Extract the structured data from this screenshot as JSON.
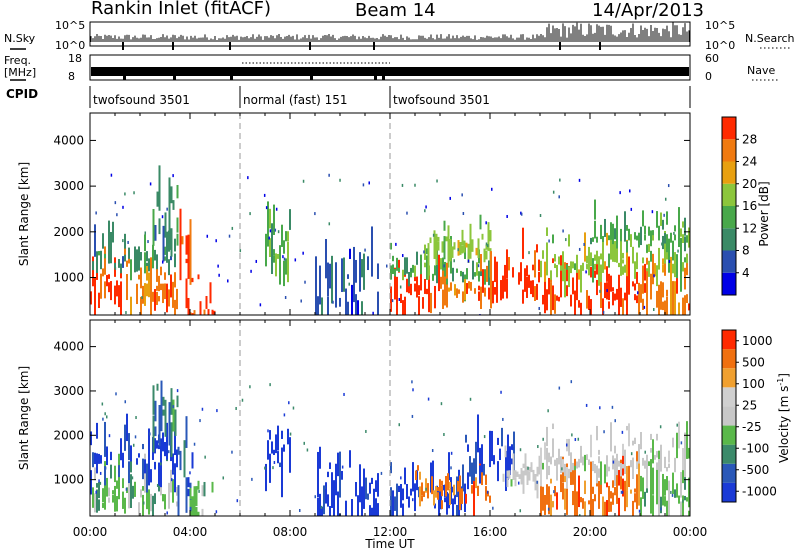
{
  "header": {
    "title_left": "Rankin Inlet (fitACF)",
    "title_center": "Beam 14",
    "title_right": "14/Apr/2013"
  },
  "status_panel": {
    "left_label": "N.Sky",
    "left_ticks": [
      "10^5",
      "10^0"
    ],
    "right_label": "N.Search",
    "right_ticks": [
      "10^5",
      "10^0"
    ]
  },
  "freq_panel": {
    "left_label_line1": "Freq.",
    "left_label_line2": "[MHz]",
    "left_ticks": [
      "18",
      "8"
    ],
    "right_label": "Nave",
    "right_ticks": [
      "60",
      "0"
    ]
  },
  "cpid_panel": {
    "label": "CPID",
    "segments": [
      {
        "name": "twofsound 3501",
        "start_h": 0,
        "end_h": 6
      },
      {
        "name": "normal (fast) 151",
        "start_h": 6,
        "end_h": 12
      },
      {
        "name": "twofsound 3501",
        "start_h": 12,
        "end_h": 24
      }
    ]
  },
  "x_axis": {
    "label": "Time UT",
    "ticks": [
      "00:00",
      "04:00",
      "08:00",
      "12:00",
      "16:00",
      "20:00",
      "00:00"
    ]
  },
  "chart_data": [
    {
      "type": "heatmap",
      "panel": "power",
      "ylabel": "Slant Range [km]",
      "ylim": [
        180,
        4600
      ],
      "yticks": [
        "1000",
        "2000",
        "3000",
        "4000"
      ],
      "xlim_hours": [
        0,
        24
      ],
      "colorbar_label": "Power [dB]",
      "colorbar_ticks": [
        "4",
        "8",
        "12",
        "16",
        "20",
        "24",
        "28"
      ],
      "colors": [
        "#0000e6",
        "#2a4fb0",
        "#3a8a66",
        "#48a84a",
        "#8cc63c",
        "#e8a010",
        "#f07a10",
        "#ff2a00"
      ],
      "regions": [
        {
          "t0": 0.0,
          "t1": 1.2,
          "r0": 500,
          "r1": 1350,
          "level": 7
        },
        {
          "t0": 0.0,
          "t1": 3.5,
          "r0": 1300,
          "r1": 2000,
          "level": 2
        },
        {
          "t0": 1.2,
          "t1": 3.5,
          "r0": 500,
          "r1": 1300,
          "level": 6
        },
        {
          "t0": 2.5,
          "t1": 3.5,
          "r0": 2000,
          "r1": 3200,
          "level": 2
        },
        {
          "t0": 3.5,
          "t1": 4.1,
          "r0": 800,
          "r1": 2400,
          "level": 7
        },
        {
          "t0": 3.9,
          "t1": 5.0,
          "r0": 180,
          "r1": 700,
          "level": 7
        },
        {
          "t0": 7.0,
          "t1": 8.0,
          "r0": 1300,
          "r1": 2500,
          "level": 3
        },
        {
          "t0": 9.0,
          "t1": 11.5,
          "r0": 300,
          "r1": 1800,
          "level": 1
        },
        {
          "t0": 12.0,
          "t1": 14.0,
          "r0": 500,
          "r1": 1100,
          "level": 7
        },
        {
          "t0": 12.0,
          "t1": 16.0,
          "r0": 1100,
          "r1": 1600,
          "level": 3
        },
        {
          "t0": 13.5,
          "t1": 16.0,
          "r0": 1600,
          "r1": 2200,
          "level": 4
        },
        {
          "t0": 14.0,
          "t1": 16.0,
          "r0": 700,
          "r1": 1100,
          "level": 6
        },
        {
          "t0": 16.0,
          "t1": 18.0,
          "r0": 700,
          "r1": 1700,
          "level": 7
        },
        {
          "t0": 18.0,
          "t1": 22.0,
          "r0": 500,
          "r1": 1200,
          "level": 7
        },
        {
          "t0": 18.0,
          "t1": 24.0,
          "r0": 1200,
          "r1": 1800,
          "level": 4
        },
        {
          "t0": 20.0,
          "t1": 24.0,
          "r0": 1800,
          "r1": 2300,
          "level": 3
        },
        {
          "t0": 22.0,
          "t1": 24.0,
          "r0": 400,
          "r1": 1200,
          "level": 6
        }
      ]
    },
    {
      "type": "heatmap",
      "panel": "velocity",
      "ylabel": "Slant Range [km]",
      "ylim": [
        180,
        4600
      ],
      "yticks": [
        "1000",
        "2000",
        "3000",
        "4000"
      ],
      "xlim_hours": [
        0,
        24
      ],
      "colorbar_label": "Velocity [m s-1]",
      "colorbar_label_parts": [
        "Velocity  [m s",
        "-1",
        "]"
      ],
      "colorbar_ticks": [
        "1000",
        "500",
        "100",
        "25",
        "-25",
        "-100",
        "-500",
        "-1000"
      ],
      "colors": [
        "#1a3ad6",
        "#2a58b8",
        "#3b8a6a",
        "#5ab84a",
        "#c8c8c8",
        "#d0d0d0",
        "#f0a030",
        "#f07010",
        "#ff2a00"
      ],
      "regions": [
        {
          "t0": 0.0,
          "t1": 3.5,
          "r0": 500,
          "r1": 1300,
          "level": 3
        },
        {
          "t0": 0.0,
          "t1": 3.5,
          "r0": 1300,
          "r1": 2200,
          "level": 0
        },
        {
          "t0": 2.5,
          "t1": 3.5,
          "r0": 2200,
          "r1": 3300,
          "level": 2
        },
        {
          "t0": 3.5,
          "t1": 4.1,
          "r0": 800,
          "r1": 2300,
          "level": 1
        },
        {
          "t0": 3.9,
          "t1": 5.0,
          "r0": 180,
          "r1": 700,
          "level": 3
        },
        {
          "t0": 7.0,
          "t1": 8.0,
          "r0": 1300,
          "r1": 2400,
          "level": 0
        },
        {
          "t0": 9.0,
          "t1": 11.5,
          "r0": 300,
          "r1": 1500,
          "level": 0
        },
        {
          "t0": 12.0,
          "t1": 15.0,
          "r0": 400,
          "r1": 1200,
          "level": 0
        },
        {
          "t0": 13.0,
          "t1": 16.0,
          "r0": 600,
          "r1": 1100,
          "level": 7
        },
        {
          "t0": 15.0,
          "t1": 17.0,
          "r0": 1200,
          "r1": 2200,
          "level": 0
        },
        {
          "t0": 16.5,
          "t1": 18.0,
          "r0": 1000,
          "r1": 1600,
          "level": 4
        },
        {
          "t0": 18.0,
          "t1": 22.0,
          "r0": 500,
          "r1": 1300,
          "level": 7
        },
        {
          "t0": 18.0,
          "t1": 24.0,
          "r0": 1300,
          "r1": 1900,
          "level": 4
        },
        {
          "t0": 22.0,
          "t1": 24.0,
          "r0": 400,
          "r1": 1300,
          "level": 3
        }
      ]
    }
  ]
}
